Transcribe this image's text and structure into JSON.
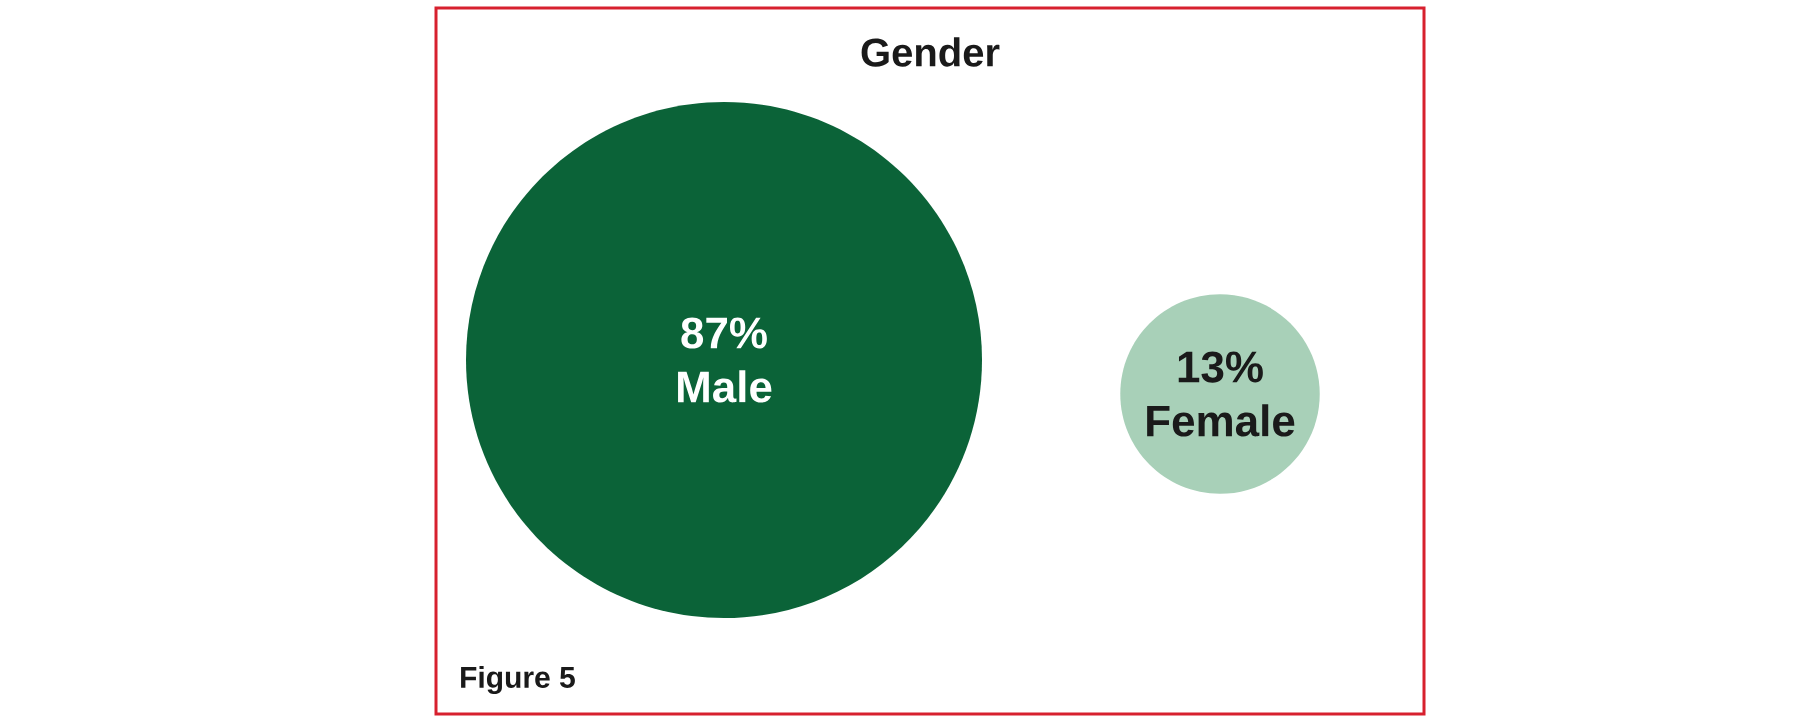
{
  "chart_data": {
    "type": "other",
    "title": "Gender",
    "categories": [
      "Male",
      "Female"
    ],
    "values": [
      87,
      13
    ],
    "value_labels": [
      "87%",
      "13%"
    ],
    "colors": [
      "#0b6338",
      "#a8d0b8"
    ],
    "annotations": [
      "Figure 5"
    ]
  }
}
